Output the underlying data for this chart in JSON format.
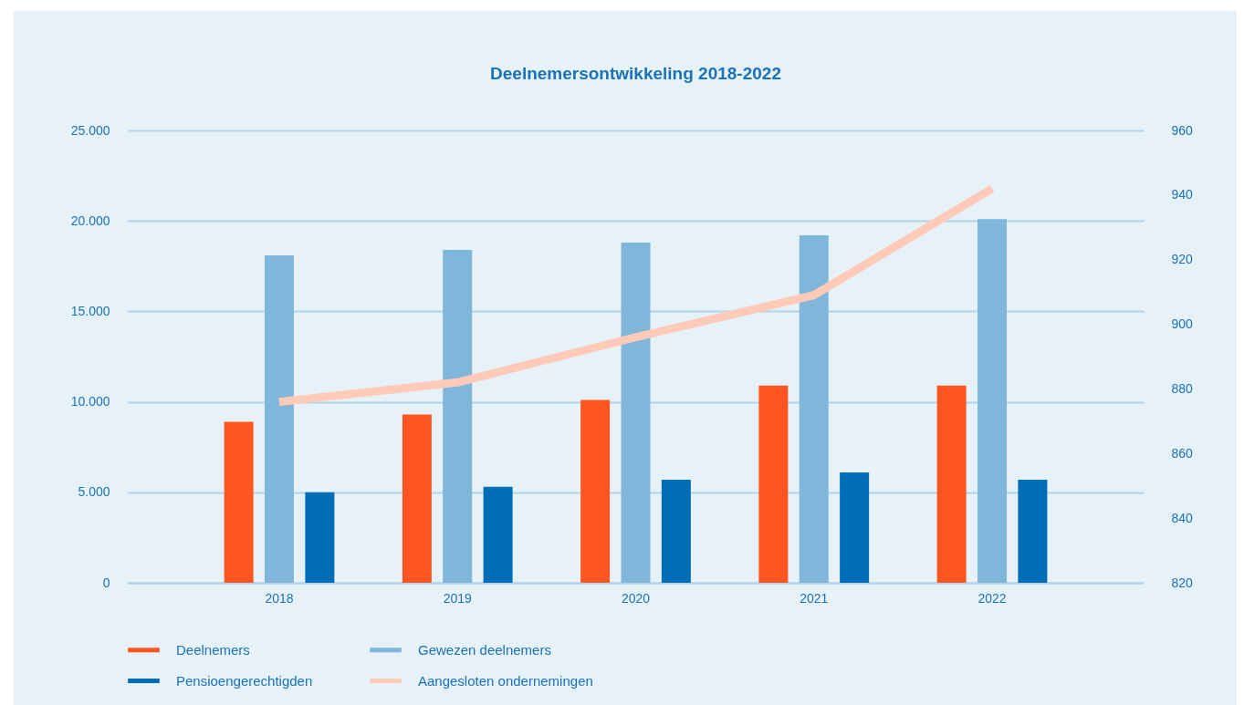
{
  "chart_data": {
    "type": "bar",
    "title": "Deelnemersontwikkeling 2018-2022",
    "categories": [
      "2018",
      "2019",
      "2020",
      "2021",
      "2022"
    ],
    "series": [
      {
        "name": "Deelnemers",
        "color": "#ff5520",
        "values": [
          8900,
          9300,
          10100,
          10900,
          10900
        ]
      },
      {
        "name": "Gewezen deelnemers",
        "color": "#80b6da",
        "values": [
          18100,
          18400,
          18800,
          19200,
          20100
        ]
      },
      {
        "name": "Pensioengerechtigden",
        "color": "#006eb6",
        "values": [
          5000,
          5300,
          5700,
          6100,
          5700
        ]
      },
      {
        "name": "Aangesloten ondernemingen",
        "color": "#ffcab8",
        "type": "line",
        "axis": "y2",
        "values": [
          876,
          882,
          896,
          909,
          942
        ]
      }
    ],
    "ylim": [
      0,
      25000
    ],
    "yticks": [
      {
        "value": 0,
        "label": "0"
      },
      {
        "value": 5000,
        "label": "5.000"
      },
      {
        "value": 10000,
        "label": "10.000"
      },
      {
        "value": 15000,
        "label": "15.000"
      },
      {
        "value": 20000,
        "label": "20.000"
      },
      {
        "value": 25000,
        "label": "25.000"
      }
    ],
    "y2lim": [
      820,
      960
    ],
    "y2ticks": [
      820,
      840,
      860,
      880,
      900,
      920,
      940,
      960
    ],
    "grid": "y",
    "legend": "bottom left"
  }
}
